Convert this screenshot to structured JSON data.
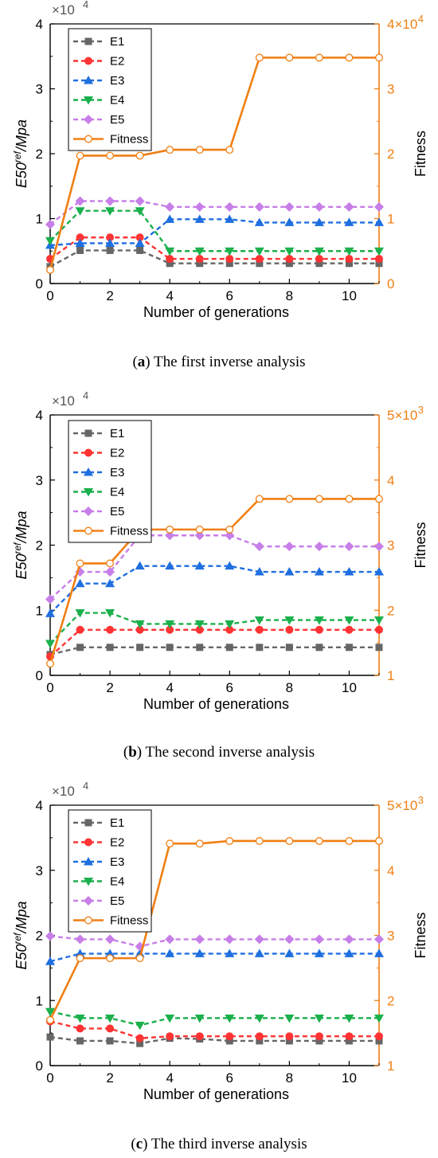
{
  "colors": {
    "E1": "#666666",
    "E2": "#ff3333",
    "E3": "#1f6fe0",
    "E4": "#1ab04c",
    "E5": "#c77ee8",
    "Fitness": "#f07f13"
  },
  "chart_data": [
    {
      "type": "line",
      "caption_label": "a",
      "caption_text": "The first inverse analysis",
      "xlabel": "Number of generations",
      "ylabel_main": "E50",
      "ylabel_sup": "ref",
      "ylabel_tail": "/Mpa",
      "y2label": "Fitness",
      "y_multiplier": "×10",
      "y_multiplier_exp": "4",
      "x_ticks": [
        "0",
        "2",
        "4",
        "6",
        "8",
        "10"
      ],
      "y_ticks": [
        "0",
        "1",
        "2",
        "3",
        "4"
      ],
      "y2_ticks": [
        "0",
        "1",
        "2",
        "3",
        "4×10"
      ],
      "y2_top_exp": "4",
      "xlim": [
        0,
        11
      ],
      "ylim": [
        0,
        40000
      ],
      "y2lim": [
        0,
        40000
      ],
      "x": [
        0,
        1,
        2,
        3,
        4,
        5,
        6,
        7,
        8,
        9,
        10,
        11
      ],
      "series": [
        {
          "name": "E1",
          "values": [
            2600,
            5100,
            5100,
            5100,
            3100,
            3100,
            3100,
            3100,
            3100,
            3100,
            3100,
            3100
          ]
        },
        {
          "name": "E2",
          "values": [
            3800,
            7100,
            7100,
            7100,
            3800,
            3800,
            3800,
            3800,
            3800,
            3800,
            3800,
            3800
          ]
        },
        {
          "name": "E3",
          "values": [
            5900,
            6200,
            6200,
            6200,
            9900,
            9900,
            9900,
            9400,
            9400,
            9400,
            9400,
            9400
          ]
        },
        {
          "name": "E4",
          "values": [
            6600,
            11200,
            11200,
            11200,
            5000,
            5000,
            5000,
            5000,
            5000,
            5000,
            5000,
            5000
          ]
        },
        {
          "name": "E5",
          "values": [
            9100,
            12700,
            12700,
            12700,
            11800,
            11800,
            11800,
            11800,
            11800,
            11800,
            11800,
            11800
          ]
        }
      ],
      "fitness": {
        "name": "Fitness",
        "values": [
          2100,
          19700,
          19700,
          19700,
          20600,
          20600,
          20600,
          34800,
          34800,
          34800,
          34800,
          34800
        ]
      }
    },
    {
      "type": "line",
      "caption_label": "b",
      "caption_text": "The second inverse analysis",
      "xlabel": "Number of generations",
      "ylabel_main": "E50",
      "ylabel_sup": "ref",
      "ylabel_tail": "/Mpa",
      "y2label": "Fitness",
      "y_multiplier": "×10",
      "y_multiplier_exp": "4",
      "x_ticks": [
        "0",
        "2",
        "4",
        "6",
        "8",
        "10"
      ],
      "y_ticks": [
        "0",
        "1",
        "2",
        "3",
        "4"
      ],
      "y2_ticks": [
        "1",
        "2",
        "3",
        "4",
        "5×10"
      ],
      "y2_top_exp": "3",
      "xlim": [
        0,
        11
      ],
      "ylim": [
        0,
        40000
      ],
      "y2lim": [
        1000,
        5000
      ],
      "x": [
        0,
        1,
        2,
        3,
        4,
        5,
        6,
        7,
        8,
        9,
        10,
        11
      ],
      "series": [
        {
          "name": "E1",
          "values": [
            3200,
            4300,
            4300,
            4300,
            4300,
            4300,
            4300,
            4300,
            4300,
            4300,
            4300,
            4300
          ]
        },
        {
          "name": "E2",
          "values": [
            2900,
            7000,
            7000,
            7000,
            7000,
            7000,
            7000,
            7000,
            7000,
            7000,
            7000,
            7000
          ]
        },
        {
          "name": "E3",
          "values": [
            9500,
            14100,
            14100,
            16800,
            16800,
            16800,
            16800,
            15900,
            15900,
            15900,
            15900,
            15900
          ]
        },
        {
          "name": "E4",
          "values": [
            4900,
            9600,
            9600,
            7900,
            7900,
            7900,
            7900,
            8500,
            8500,
            8500,
            8500,
            8500
          ]
        },
        {
          "name": "E5",
          "values": [
            11700,
            15900,
            15900,
            21500,
            21500,
            21500,
            21500,
            19800,
            19800,
            19800,
            19800,
            19800
          ]
        }
      ],
      "fitness": {
        "name": "Fitness",
        "values": [
          1180,
          2720,
          2720,
          3240,
          3240,
          3240,
          3240,
          3710,
          3710,
          3710,
          3710,
          3710
        ]
      }
    },
    {
      "type": "line",
      "caption_label": "c",
      "caption_text": "The third inverse analysis",
      "xlabel": "Number of generations",
      "ylabel_main": "E50",
      "ylabel_sup": "ref",
      "ylabel_tail": "/Mpa",
      "y2label": "Fitness",
      "y_multiplier": "×10",
      "y_multiplier_exp": "4",
      "x_ticks": [
        "0",
        "2",
        "4",
        "6",
        "8",
        "10"
      ],
      "y_ticks": [
        "0",
        "1",
        "2",
        "3",
        "4"
      ],
      "y2_ticks": [
        "1",
        "2",
        "3",
        "4",
        "5×10"
      ],
      "y2_top_exp": "3",
      "xlim": [
        0,
        11
      ],
      "ylim": [
        0,
        40000
      ],
      "y2lim": [
        1000,
        5000
      ],
      "x": [
        0,
        1,
        2,
        3,
        4,
        5,
        6,
        7,
        8,
        9,
        10,
        11
      ],
      "series": [
        {
          "name": "E1",
          "values": [
            4400,
            3800,
            3800,
            3400,
            4200,
            4100,
            3800,
            3800,
            3800,
            3800,
            3800,
            3800
          ]
        },
        {
          "name": "E2",
          "values": [
            6800,
            5700,
            5700,
            4200,
            4500,
            4500,
            4500,
            4500,
            4500,
            4500,
            4500,
            4500
          ]
        },
        {
          "name": "E3",
          "values": [
            16000,
            17200,
            17200,
            17200,
            17200,
            17200,
            17200,
            17200,
            17200,
            17200,
            17200,
            17200
          ]
        },
        {
          "name": "E4",
          "values": [
            8300,
            7300,
            7300,
            6200,
            7300,
            7300,
            7300,
            7300,
            7300,
            7300,
            7300,
            7300
          ]
        },
        {
          "name": "E5",
          "values": [
            19900,
            19400,
            19400,
            18300,
            19400,
            19400,
            19400,
            19400,
            19400,
            19400,
            19400,
            19400
          ]
        }
      ],
      "fitness": {
        "name": "Fitness",
        "values": [
          1700,
          2650,
          2650,
          2650,
          4410,
          4410,
          4450,
          4450,
          4450,
          4450,
          4450,
          4450
        ]
      }
    }
  ]
}
